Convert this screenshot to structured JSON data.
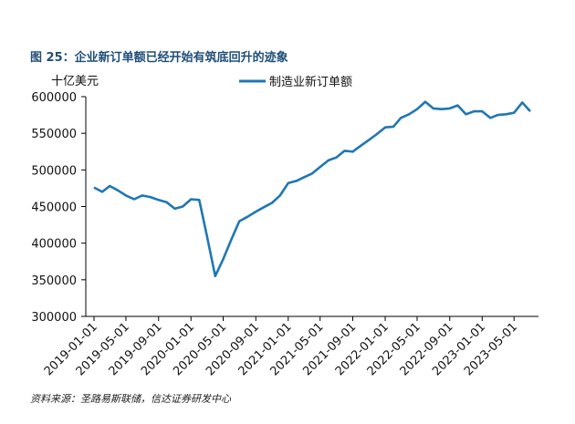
{
  "figure": {
    "title": "图 25：企业新订单额已经开始有筑底回升的迹象",
    "source": "资料来源：圣路易斯联储，信达证券研发中心"
  },
  "chart_data": {
    "type": "line",
    "unit_label": "十亿美元",
    "ylim": [
      300000,
      600000
    ],
    "y_ticks": [
      300000,
      350000,
      400000,
      450000,
      500000,
      550000,
      600000
    ],
    "y_tick_labels": [
      "300000",
      "350000",
      "400000",
      "450000",
      "500000",
      "550000",
      "600000"
    ],
    "x_tick_labels": [
      "2019-01-01",
      "2019-05-01",
      "2019-09-01",
      "2020-01-01",
      "2020-05-01",
      "2020-09-01",
      "2021-01-01",
      "2021-05-01",
      "2021-09-01",
      "2022-01-01",
      "2022-05-01",
      "2022-09-01",
      "2023-01-01",
      "2023-05-01"
    ],
    "legend_position": "top-center",
    "grid": false,
    "series": [
      {
        "name": "制造业新订单额",
        "color": "#1f77b4",
        "x": [
          "2019-01-01",
          "2019-02-01",
          "2019-03-01",
          "2019-04-01",
          "2019-05-01",
          "2019-06-01",
          "2019-07-01",
          "2019-08-01",
          "2019-09-01",
          "2019-10-01",
          "2019-11-01",
          "2019-12-01",
          "2020-01-01",
          "2020-02-01",
          "2020-03-01",
          "2020-04-01",
          "2020-05-01",
          "2020-06-01",
          "2020-07-01",
          "2020-08-01",
          "2020-09-01",
          "2020-10-01",
          "2020-11-01",
          "2020-12-01",
          "2021-01-01",
          "2021-02-01",
          "2021-03-01",
          "2021-04-01",
          "2021-05-01",
          "2021-06-01",
          "2021-07-01",
          "2021-08-01",
          "2021-09-01",
          "2021-10-01",
          "2021-11-01",
          "2021-12-01",
          "2022-01-01",
          "2022-02-01",
          "2022-03-01",
          "2022-04-01",
          "2022-05-01",
          "2022-06-01",
          "2022-07-01",
          "2022-08-01",
          "2022-09-01",
          "2022-10-01",
          "2022-11-01",
          "2022-12-01",
          "2023-01-01",
          "2023-02-01",
          "2023-03-01",
          "2023-04-01",
          "2023-05-01",
          "2023-06-01",
          "2023-07-01"
        ],
        "values": [
          476000,
          470000,
          478000,
          472000,
          465000,
          460000,
          465000,
          463000,
          459000,
          456000,
          447000,
          450000,
          460000,
          459000,
          410000,
          355000,
          378000,
          405000,
          430000,
          436000,
          443000,
          449000,
          455000,
          465000,
          482000,
          485000,
          490000,
          495000,
          504000,
          513000,
          517000,
          526000,
          525000,
          533000,
          541000,
          549000,
          558000,
          559000,
          571000,
          576000,
          583000,
          593000,
          584000,
          583000,
          584000,
          588000,
          576000,
          580000,
          580000,
          571000,
          575000,
          576000,
          578000,
          592000,
          580000
        ]
      }
    ]
  }
}
